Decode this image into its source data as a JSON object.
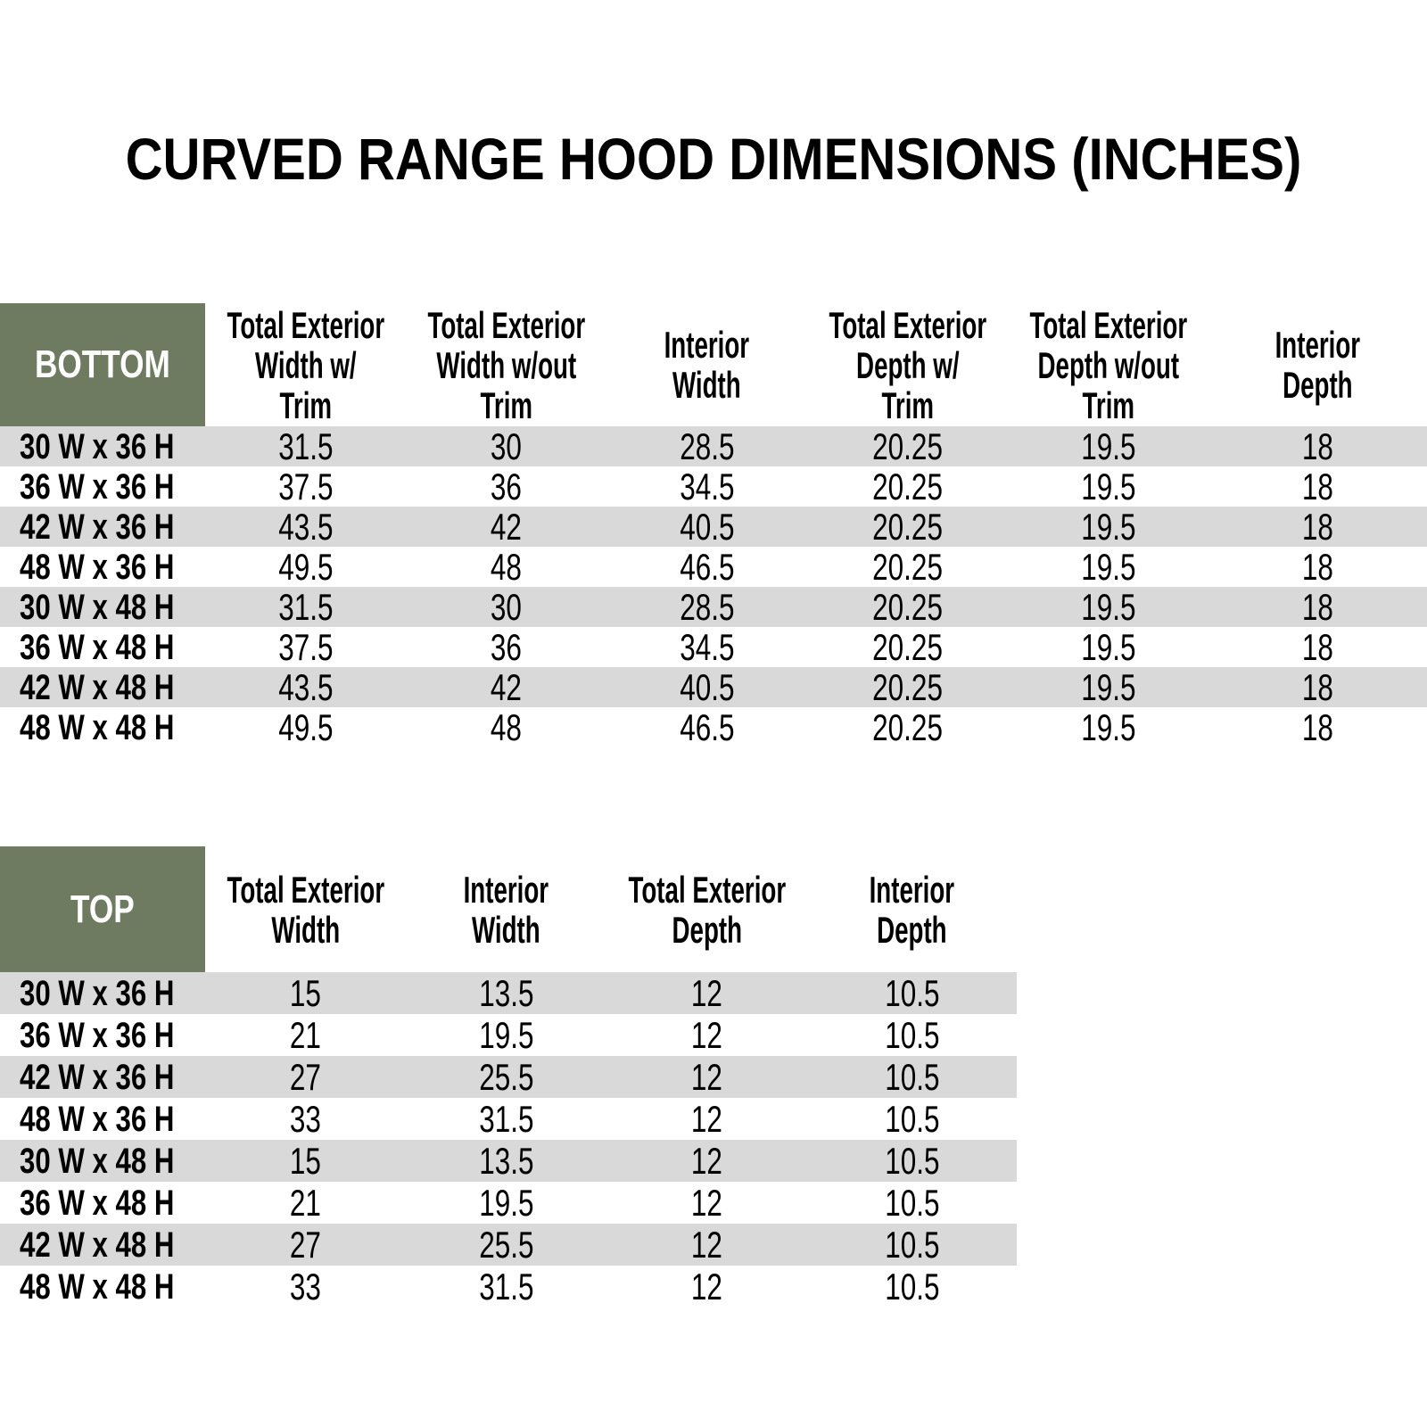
{
  "title": "CURVED RANGE HOOD DIMENSIONS (INCHES)",
  "colors": {
    "header_green": "#6E7B60",
    "row_gray": "#D9D9D9",
    "text": "#000000",
    "corner_text": "#FFFFFF"
  },
  "bottom_table": {
    "corner_label": "BOTTOM",
    "columns": [
      "Total Exterior\nWidth w/\nTrim",
      "Total Exterior\nWidth w/out\nTrim",
      "Interior\nWidth",
      "Total Exterior\nDepth w/\nTrim",
      "Total Exterior\nDepth w/out\nTrim",
      "Interior\nDepth"
    ],
    "rows": [
      {
        "label": "30 W x 36 H",
        "values": [
          "31.5",
          "30",
          "28.5",
          "20.25",
          "19.5",
          "18"
        ]
      },
      {
        "label": "36 W x 36 H",
        "values": [
          "37.5",
          "36",
          "34.5",
          "20.25",
          "19.5",
          "18"
        ]
      },
      {
        "label": "42 W x 36 H",
        "values": [
          "43.5",
          "42",
          "40.5",
          "20.25",
          "19.5",
          "18"
        ]
      },
      {
        "label": "48 W x 36 H",
        "values": [
          "49.5",
          "48",
          "46.5",
          "20.25",
          "19.5",
          "18"
        ]
      },
      {
        "label": "30 W x 48 H",
        "values": [
          "31.5",
          "30",
          "28.5",
          "20.25",
          "19.5",
          "18"
        ]
      },
      {
        "label": "36 W x 48 H",
        "values": [
          "37.5",
          "36",
          "34.5",
          "20.25",
          "19.5",
          "18"
        ]
      },
      {
        "label": "42 W x 48 H",
        "values": [
          "43.5",
          "42",
          "40.5",
          "20.25",
          "19.5",
          "18"
        ]
      },
      {
        "label": "48 W x 48 H",
        "values": [
          "49.5",
          "48",
          "46.5",
          "20.25",
          "19.5",
          "18"
        ]
      }
    ]
  },
  "top_table": {
    "corner_label": "TOP",
    "columns": [
      "Total Exterior\nWidth",
      "Interior\nWidth",
      "Total Exterior\nDepth",
      "Interior\nDepth"
    ],
    "rows": [
      {
        "label": "30 W x 36 H",
        "values": [
          "15",
          "13.5",
          "12",
          "10.5"
        ]
      },
      {
        "label": "36 W x 36 H",
        "values": [
          "21",
          "19.5",
          "12",
          "10.5"
        ]
      },
      {
        "label": "42 W x 36 H",
        "values": [
          "27",
          "25.5",
          "12",
          "10.5"
        ]
      },
      {
        "label": "48 W x 36 H",
        "values": [
          "33",
          "31.5",
          "12",
          "10.5"
        ]
      },
      {
        "label": "30 W x 48 H",
        "values": [
          "15",
          "13.5",
          "12",
          "10.5"
        ]
      },
      {
        "label": "36 W x 48 H",
        "values": [
          "21",
          "19.5",
          "12",
          "10.5"
        ]
      },
      {
        "label": "42 W x 48 H",
        "values": [
          "27",
          "25.5",
          "12",
          "10.5"
        ]
      },
      {
        "label": "48 W x 48 H",
        "values": [
          "33",
          "31.5",
          "12",
          "10.5"
        ]
      }
    ]
  }
}
